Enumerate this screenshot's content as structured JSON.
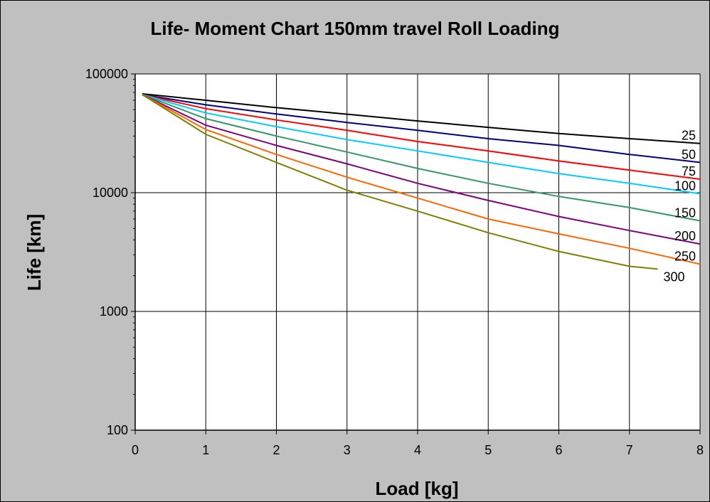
{
  "chart_data": {
    "type": "line",
    "title": "Life- Moment Chart 150mm travel Roll  Loading",
    "xlabel": "Load [kg]",
    "ylabel": "Life [km]",
    "xlim": [
      0,
      8
    ],
    "ylim": [
      100,
      100000
    ],
    "yscale": "log",
    "grid": true,
    "x_ticks": [
      "0",
      "1",
      "2",
      "3",
      "4",
      "5",
      "6",
      "7",
      "8"
    ],
    "y_ticks": [
      "100",
      "1000",
      "10000",
      "100000"
    ],
    "x": [
      0.1,
      1,
      2,
      3,
      4,
      5,
      6,
      7,
      8
    ],
    "series": [
      {
        "name": "25",
        "color": "#000000",
        "values": [
          68000,
          60000,
          52000,
          45800,
          40200,
          35500,
          31500,
          28500,
          26000
        ],
        "x_end": 8
      },
      {
        "name": "50",
        "color": "#000080",
        "values": [
          67000,
          55000,
          46000,
          39000,
          33500,
          28500,
          25000,
          21000,
          18000
        ],
        "x_end": 8
      },
      {
        "name": "75",
        "color": "#ff0000",
        "values": [
          67000,
          51000,
          41000,
          33500,
          27000,
          22500,
          18500,
          15500,
          13000
        ],
        "x_end": 8
      },
      {
        "name": "100",
        "color": "#00ccff",
        "values": [
          67000,
          47000,
          36000,
          28000,
          22500,
          18000,
          14500,
          12000,
          9800
        ],
        "x_end": 8
      },
      {
        "name": "150",
        "color": "#339966",
        "values": [
          67000,
          42000,
          30000,
          22000,
          16000,
          12000,
          9300,
          7500,
          5800
        ],
        "x_end": 8
      },
      {
        "name": "200",
        "color": "#800080",
        "values": [
          67000,
          37000,
          25000,
          17500,
          12000,
          8600,
          6300,
          4800,
          3700
        ],
        "x_end": 8
      },
      {
        "name": "250",
        "color": "#ff6600",
        "values": [
          67000,
          34000,
          21000,
          13500,
          9000,
          6000,
          4500,
          3400,
          2500
        ],
        "x_end": 8
      },
      {
        "name": "300",
        "color": "#808000",
        "values": [
          67000,
          31000,
          18000,
          10500,
          7000,
          4600,
          3200,
          2400,
          2100
        ],
        "x_end": 7.4
      }
    ],
    "series_labels": [
      "25",
      "50",
      "75",
      "100",
      "150",
      "200",
      "250",
      "300"
    ]
  }
}
